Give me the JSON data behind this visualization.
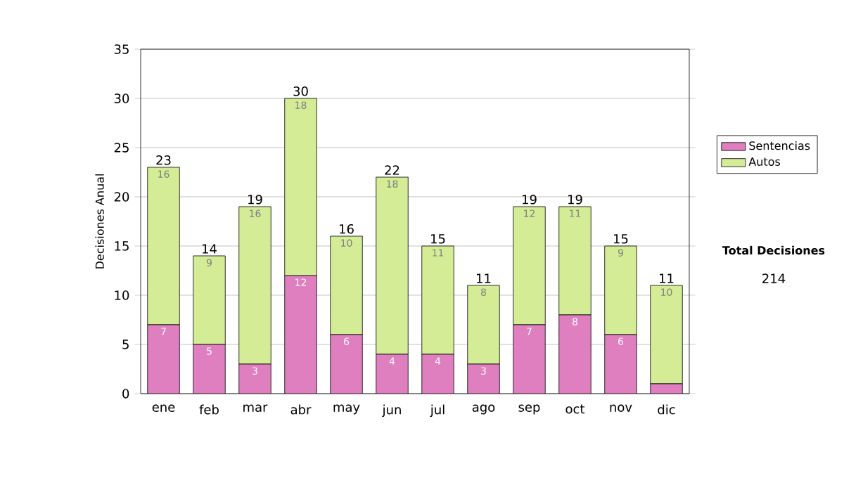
{
  "chart_data": {
    "type": "bar",
    "stacked": true,
    "ylabel": "Decisiones Anual",
    "categories": [
      "ene",
      "feb",
      "mar",
      "abr",
      "may",
      "jun",
      "jul",
      "ago",
      "sep",
      "oct",
      "nov",
      "dic"
    ],
    "series": [
      {
        "name": "Sentencias",
        "color": "#df7fbf",
        "values": [
          7,
          5,
          3,
          12,
          6,
          4,
          4,
          3,
          7,
          8,
          6,
          1
        ],
        "value_labels": [
          "7",
          "5",
          "3",
          "12",
          "6",
          "4",
          "4",
          "3",
          "7",
          "8",
          "6",
          null
        ]
      },
      {
        "name": "Autos",
        "color": "#d4ec96",
        "values": [
          16,
          9,
          16,
          18,
          10,
          18,
          11,
          8,
          12,
          11,
          9,
          10
        ],
        "value_labels": [
          "16",
          "9",
          "16",
          "18",
          "10",
          "18",
          "11",
          "8",
          "12",
          "11",
          "9",
          "10"
        ]
      }
    ],
    "totals": [
      "23",
      "14",
      "19",
      "30",
      "16",
      "22",
      "15",
      "11",
      "19",
      "19",
      "15",
      "11"
    ],
    "ylim": [
      0,
      35
    ],
    "yticks": [
      0,
      5,
      10,
      15,
      20,
      25,
      30,
      35
    ],
    "grid": "y",
    "legend": "right",
    "annotations": [
      "Total Decisiones",
      "214"
    ]
  }
}
